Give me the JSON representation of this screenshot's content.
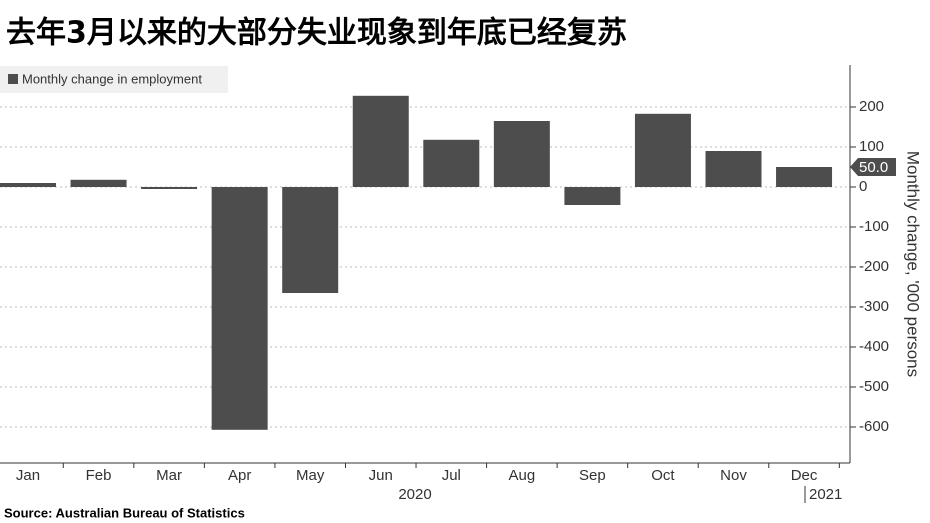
{
  "chart_data": {
    "type": "bar",
    "title": "去年3月以来的大部分失业现象到年底已经复苏",
    "categories": [
      "Jan",
      "Feb",
      "Mar",
      "Apr",
      "May",
      "Jun",
      "Jul",
      "Aug",
      "Sep",
      "Oct",
      "Nov",
      "Dec"
    ],
    "series": [
      {
        "name": "Monthly change in employment",
        "color": "#4d4d4d",
        "values": [
          10,
          18,
          -5,
          -607,
          -265,
          228,
          118,
          165,
          -45,
          183,
          90,
          50
        ],
        "value_labels": [
          null,
          null,
          null,
          null,
          null,
          null,
          null,
          null,
          null,
          null,
          null,
          "50.0"
        ]
      }
    ],
    "x_groups": [
      "2020",
      "2021"
    ],
    "y_axis_label": "Monthly change, '000 persons",
    "ylim": [
      -690,
      305
    ],
    "yticks": [
      200,
      100,
      0,
      -100,
      -200,
      -300,
      -400,
      -500,
      -600
    ],
    "grid": true,
    "source": "Source: Australian Bureau of Statistics"
  }
}
